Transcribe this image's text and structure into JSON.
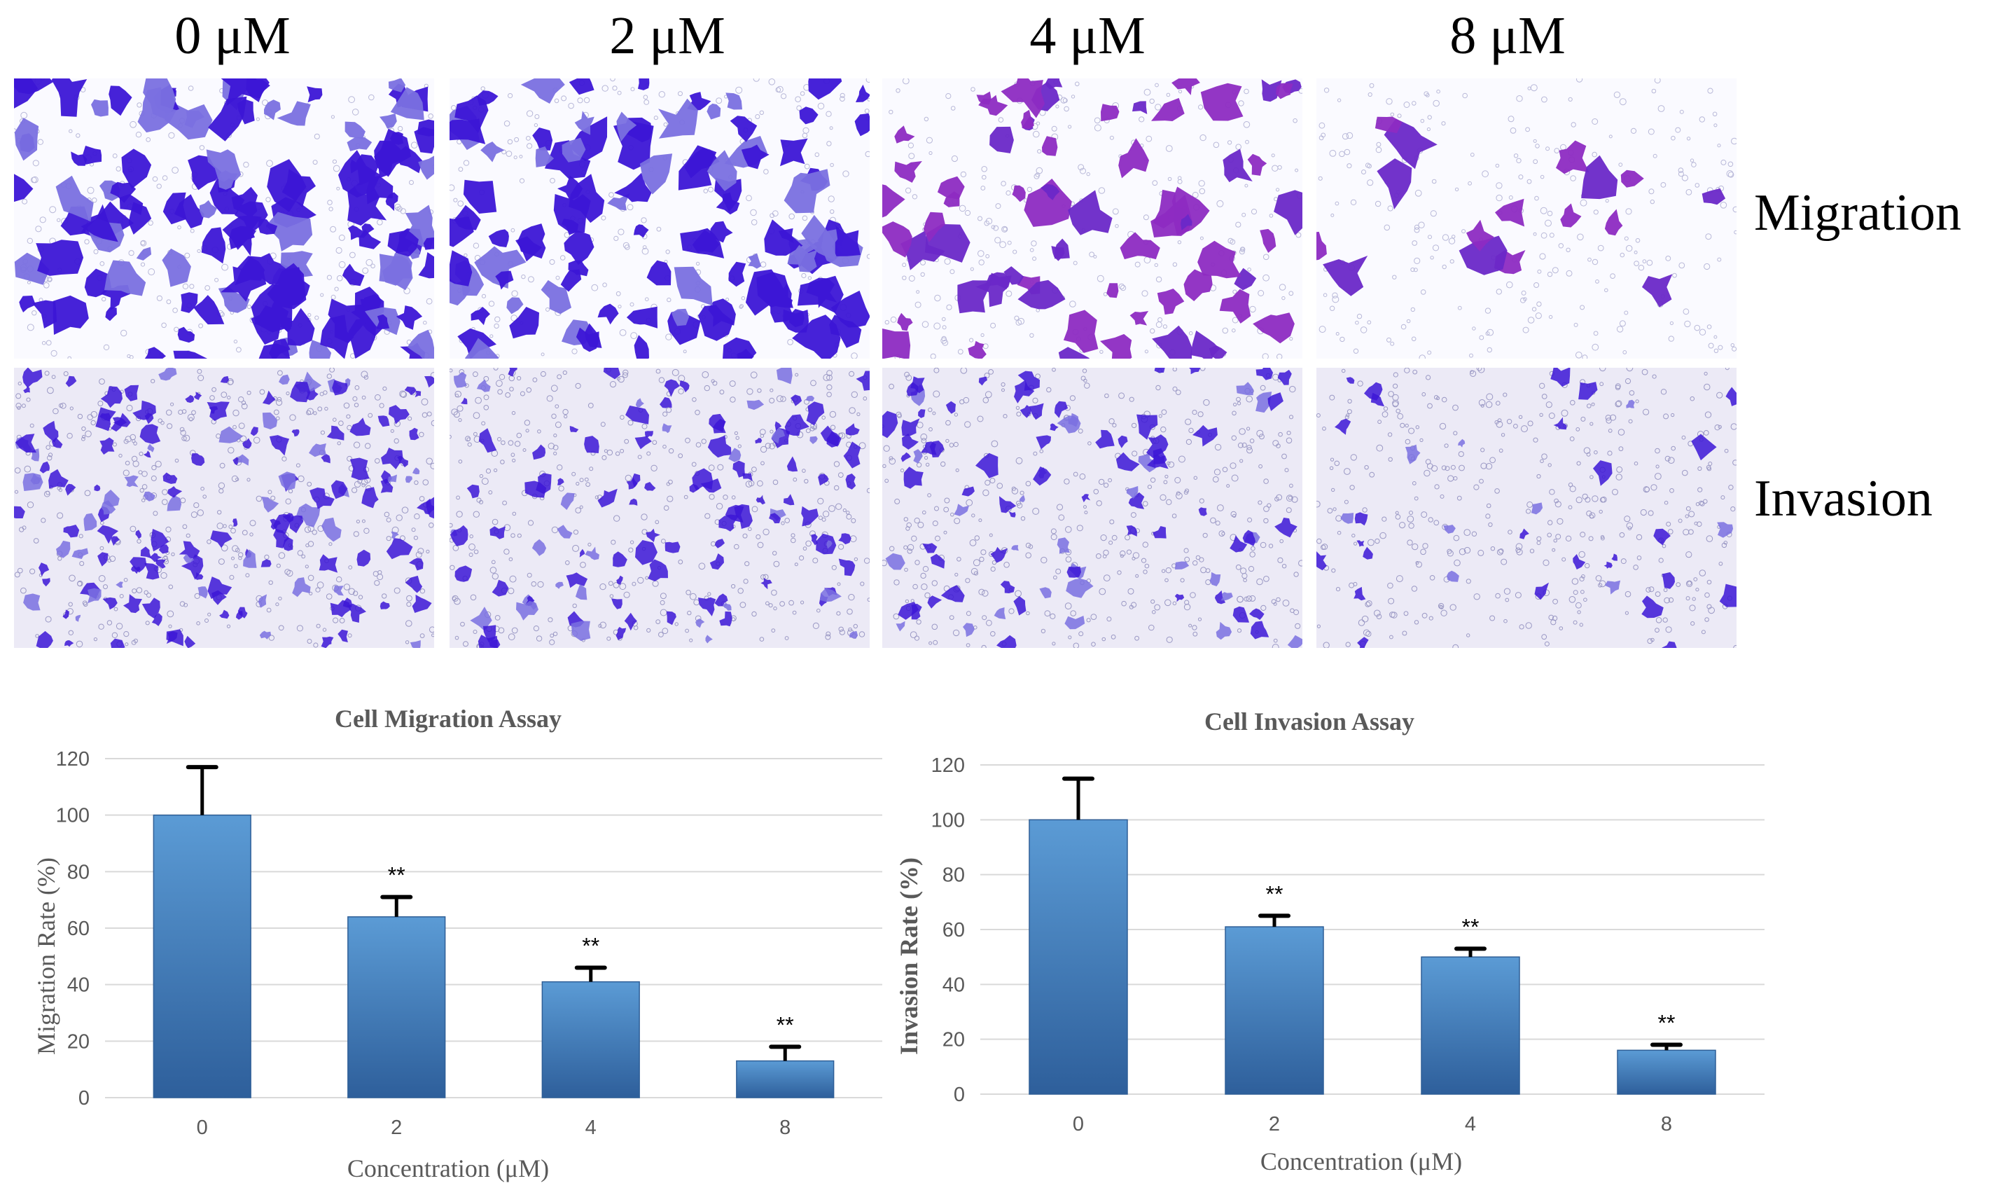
{
  "figure": {
    "concentrations": [
      "0 μM",
      "2 μM",
      "4 μM",
      "8 μM"
    ],
    "rows": [
      "Migration",
      "Invasion"
    ]
  },
  "colors": {
    "bar_top": "#5b9bd5",
    "bar_bottom": "#2e5f9b",
    "stain_dark": "#3c16d6",
    "stain_light": "#7a70e0",
    "stain_magenta": "#8d2bc2",
    "grid": "#d9d9d9",
    "axis_text": "#595959"
  },
  "chart_data": [
    {
      "type": "bar",
      "title": "Cell Migration Assay",
      "xlabel": "Concentration (μM)",
      "ylabel": "Migration Rate (%)",
      "categories": [
        "0",
        "2",
        "4",
        "8"
      ],
      "values": [
        100,
        64,
        41,
        13
      ],
      "error": [
        17,
        7,
        5,
        5
      ],
      "significance": [
        "",
        "**",
        "**",
        "**"
      ],
      "ylim": [
        0,
        120
      ],
      "yticks": [
        0,
        20,
        40,
        60,
        80,
        100,
        120
      ],
      "ylabel_bold": false
    },
    {
      "type": "bar",
      "title": "Cell  Invasion Assay",
      "xlabel": "Concentration (μM)",
      "ylabel": "Invasion Rate (%)",
      "categories": [
        "0",
        "2",
        "4",
        "8"
      ],
      "values": [
        100,
        61,
        50,
        16
      ],
      "error": [
        15,
        4,
        3,
        2
      ],
      "significance": [
        "",
        "**",
        "**",
        "**"
      ],
      "ylim": [
        0,
        120
      ],
      "yticks": [
        0,
        20,
        40,
        60,
        80,
        100,
        120
      ],
      "ylabel_bold": true
    }
  ]
}
